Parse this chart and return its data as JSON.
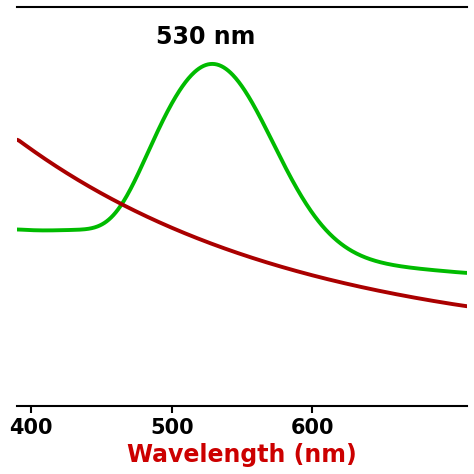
{
  "xlabel": "Wavelength (nm)",
  "xlabel_color": "#cc0000",
  "xlim": [
    390,
    710
  ],
  "ylim": [
    0.0,
    1.05
  ],
  "xticks": [
    400,
    500,
    600
  ],
  "annotation_text": "530 nm",
  "green_color": "#00bb00",
  "red_color": "#aa0000",
  "linewidth": 2.8,
  "background_color": "#ffffff",
  "annotation_fontsize": 17,
  "annotation_fontweight": "bold",
  "xlabel_fontsize": 17,
  "xlabel_fontweight": "bold",
  "tick_fontsize": 15,
  "tick_fontweight": "bold"
}
